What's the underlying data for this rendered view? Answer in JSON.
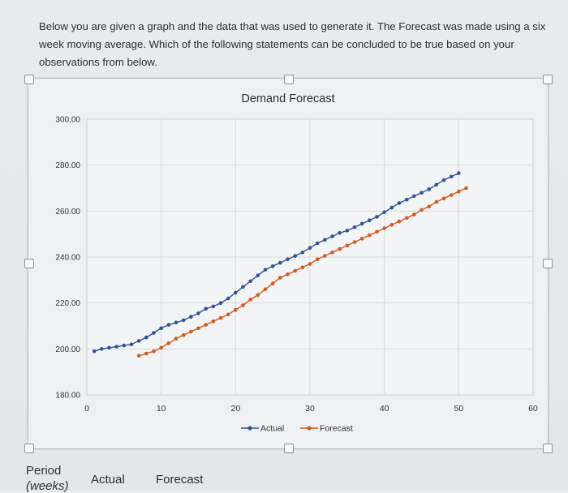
{
  "question": {
    "text": "Below you are given a graph and the data that was used to generate it. The Forecast was made using a six week moving average. Which of the following statements can be concluded to be true based on your observations from below."
  },
  "table": {
    "col1": "Period",
    "col1_sub": "(weeks)",
    "col2": "Actual",
    "col3": "Forecast"
  },
  "colors": {
    "actual": "#2f5496",
    "forecast": "#d15a1e",
    "grid": "#d8d9db"
  },
  "chart_data": {
    "type": "line",
    "title": "Demand Forecast",
    "xlabel": "",
    "ylabel": "",
    "xlim": [
      0,
      60
    ],
    "ylim": [
      180,
      300
    ],
    "x_ticks": [
      "0",
      "10",
      "20",
      "30",
      "40",
      "50",
      "60"
    ],
    "y_ticks": [
      "300.00",
      "280.00",
      "260.00",
      "240.00",
      "220.00",
      "200.00",
      "180.00"
    ],
    "grid": true,
    "legend": "bottom",
    "series": [
      {
        "name": "Actual",
        "marker": "circle",
        "x": [
          1,
          2,
          3,
          4,
          5,
          6,
          7,
          8,
          9,
          10,
          11,
          12,
          13,
          14,
          15,
          16,
          17,
          18,
          19,
          20,
          21,
          22,
          23,
          24,
          25,
          26,
          27,
          28,
          29,
          30,
          31,
          32,
          33,
          34,
          35,
          36,
          37,
          38,
          39,
          40,
          41,
          42,
          43,
          44,
          45,
          46,
          47,
          48,
          49,
          50
        ],
        "y": [
          199.0,
          200.0,
          200.5,
          201.0,
          201.5,
          202.0,
          203.5,
          205.0,
          207.0,
          209.0,
          210.5,
          211.5,
          212.5,
          214.0,
          215.5,
          217.5,
          218.5,
          220.0,
          222.0,
          224.5,
          227.0,
          229.5,
          232.0,
          234.5,
          236.0,
          237.5,
          239.0,
          240.5,
          242.0,
          244.0,
          246.0,
          247.5,
          249.0,
          250.5,
          251.5,
          253.0,
          254.5,
          256.0,
          257.5,
          259.5,
          261.5,
          263.5,
          265.0,
          266.5,
          268.0,
          269.5,
          271.5,
          273.5,
          275.0,
          276.5
        ]
      },
      {
        "name": "Forecast",
        "marker": "circle",
        "x": [
          7,
          8,
          9,
          10,
          11,
          12,
          13,
          14,
          15,
          16,
          17,
          18,
          19,
          20,
          21,
          22,
          23,
          24,
          25,
          26,
          27,
          28,
          29,
          30,
          31,
          32,
          33,
          34,
          35,
          36,
          37,
          38,
          39,
          40,
          41,
          42,
          43,
          44,
          45,
          46,
          47,
          48,
          49,
          50,
          51
        ],
        "y": [
          197.0,
          198.0,
          199.0,
          200.5,
          202.5,
          204.5,
          206.0,
          207.5,
          209.0,
          210.5,
          212.0,
          213.5,
          215.0,
          217.0,
          219.0,
          221.5,
          223.5,
          226.0,
          228.5,
          231.0,
          232.5,
          234.0,
          235.5,
          237.0,
          239.0,
          240.5,
          242.0,
          243.5,
          245.0,
          246.5,
          248.0,
          249.5,
          251.0,
          252.5,
          254.0,
          255.5,
          257.0,
          258.5,
          260.5,
          262.0,
          264.0,
          265.5,
          267.0,
          268.5,
          270.0
        ]
      }
    ]
  }
}
